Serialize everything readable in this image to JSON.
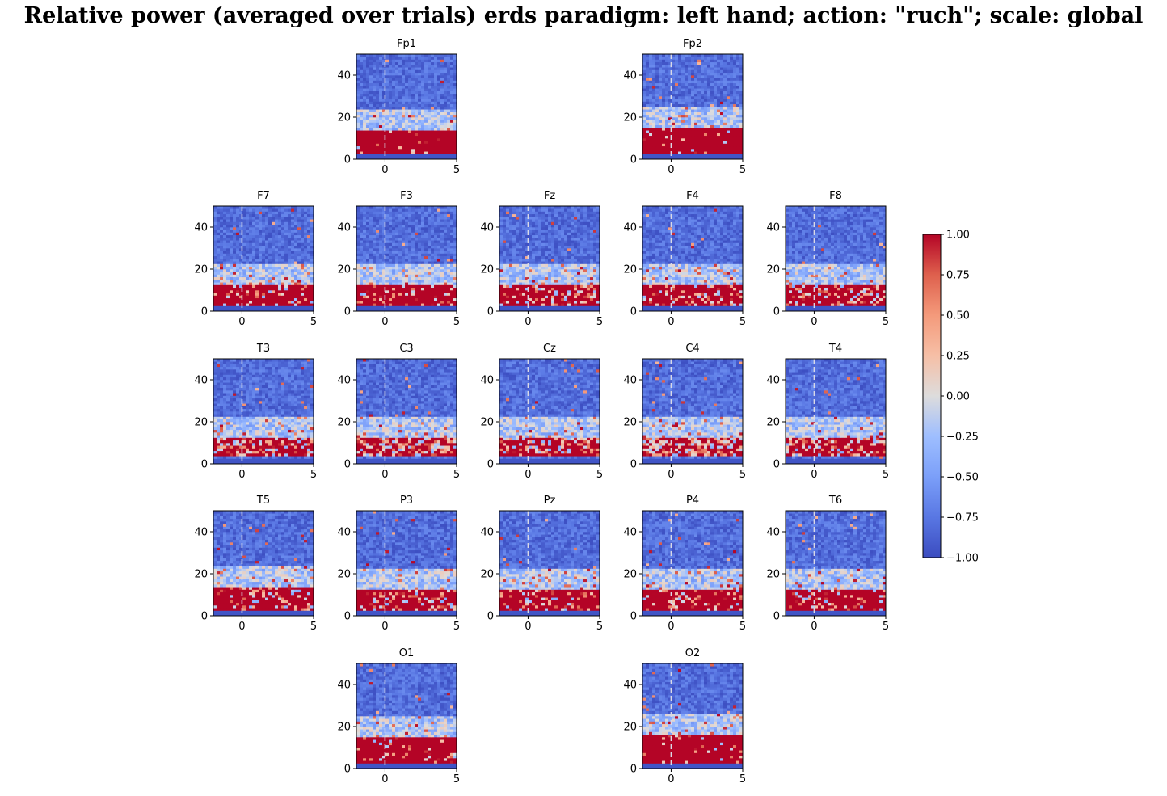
{
  "title": "Relative power (averaged over trials) erds paradigm: left hand; action: \"ruch\"; scale: global",
  "chart_data": {
    "type": "heatmap",
    "title": "Relative power (averaged over trials) erds paradigm: left hand; action: \"ruch\"; scale: global",
    "colormap": "coolwarm",
    "colors": {
      "low": "#3b4cc0",
      "mid": "#dddddd",
      "high": "#b40426",
      "event_marker": "#d9d9e6"
    },
    "event_marker_x": 0,
    "xlim": [
      -2,
      5
    ],
    "ylim": [
      0,
      50
    ],
    "xticks": [
      0,
      5
    ],
    "yticks": [
      0,
      20,
      40
    ],
    "colorbar": {
      "min": -1.0,
      "max": 1.0,
      "ticks": [
        "1.00",
        "0.75",
        "0.50",
        "0.25",
        "0.00",
        "−0.25",
        "−0.50",
        "−0.75",
        "−1.00"
      ],
      "tick_values": [
        1.0,
        0.75,
        0.5,
        0.25,
        0.0,
        -0.25,
        -0.5,
        -0.75,
        -1.0
      ]
    },
    "channels": [
      {
        "name": "Fp1",
        "row": 0,
        "col": 1,
        "band": [
          2,
          14
        ],
        "band_strength": 0.95
      },
      {
        "name": "Fp2",
        "row": 0,
        "col": 3,
        "band": [
          2,
          15
        ],
        "band_strength": 0.95
      },
      {
        "name": "F7",
        "row": 1,
        "col": 0,
        "band": [
          3,
          13
        ],
        "band_strength": 0.85
      },
      {
        "name": "F3",
        "row": 1,
        "col": 1,
        "band": [
          3,
          13
        ],
        "band_strength": 0.8
      },
      {
        "name": "Fz",
        "row": 1,
        "col": 2,
        "band": [
          3,
          13
        ],
        "band_strength": 0.75
      },
      {
        "name": "F4",
        "row": 1,
        "col": 3,
        "band": [
          3,
          13
        ],
        "band_strength": 0.75
      },
      {
        "name": "F8",
        "row": 1,
        "col": 4,
        "band": [
          3,
          13
        ],
        "band_strength": 0.7
      },
      {
        "name": "T3",
        "row": 2,
        "col": 0,
        "band": [
          4,
          13
        ],
        "band_strength": 0.6
      },
      {
        "name": "C3",
        "row": 2,
        "col": 1,
        "band": [
          4,
          12
        ],
        "band_strength": 0.5
      },
      {
        "name": "Cz",
        "row": 2,
        "col": 2,
        "band": [
          4,
          12
        ],
        "band_strength": 0.65
      },
      {
        "name": "C4",
        "row": 2,
        "col": 3,
        "band": [
          4,
          12
        ],
        "band_strength": 0.45
      },
      {
        "name": "T4",
        "row": 2,
        "col": 4,
        "band": [
          4,
          13
        ],
        "band_strength": 0.6
      },
      {
        "name": "T5",
        "row": 3,
        "col": 0,
        "band": [
          3,
          14
        ],
        "band_strength": 0.8
      },
      {
        "name": "P3",
        "row": 3,
        "col": 1,
        "band": [
          3,
          13
        ],
        "band_strength": 0.75
      },
      {
        "name": "Pz",
        "row": 3,
        "col": 2,
        "band": [
          3,
          13
        ],
        "band_strength": 0.75
      },
      {
        "name": "P4",
        "row": 3,
        "col": 3,
        "band": [
          3,
          13
        ],
        "band_strength": 0.8
      },
      {
        "name": "T6",
        "row": 3,
        "col": 4,
        "band": [
          3,
          13
        ],
        "band_strength": 0.8
      },
      {
        "name": "O1",
        "row": 4,
        "col": 1,
        "band": [
          3,
          15
        ],
        "band_strength": 0.9
      },
      {
        "name": "O2",
        "row": 4,
        "col": 3,
        "band": [
          3,
          16
        ],
        "band_strength": 0.95
      }
    ]
  }
}
